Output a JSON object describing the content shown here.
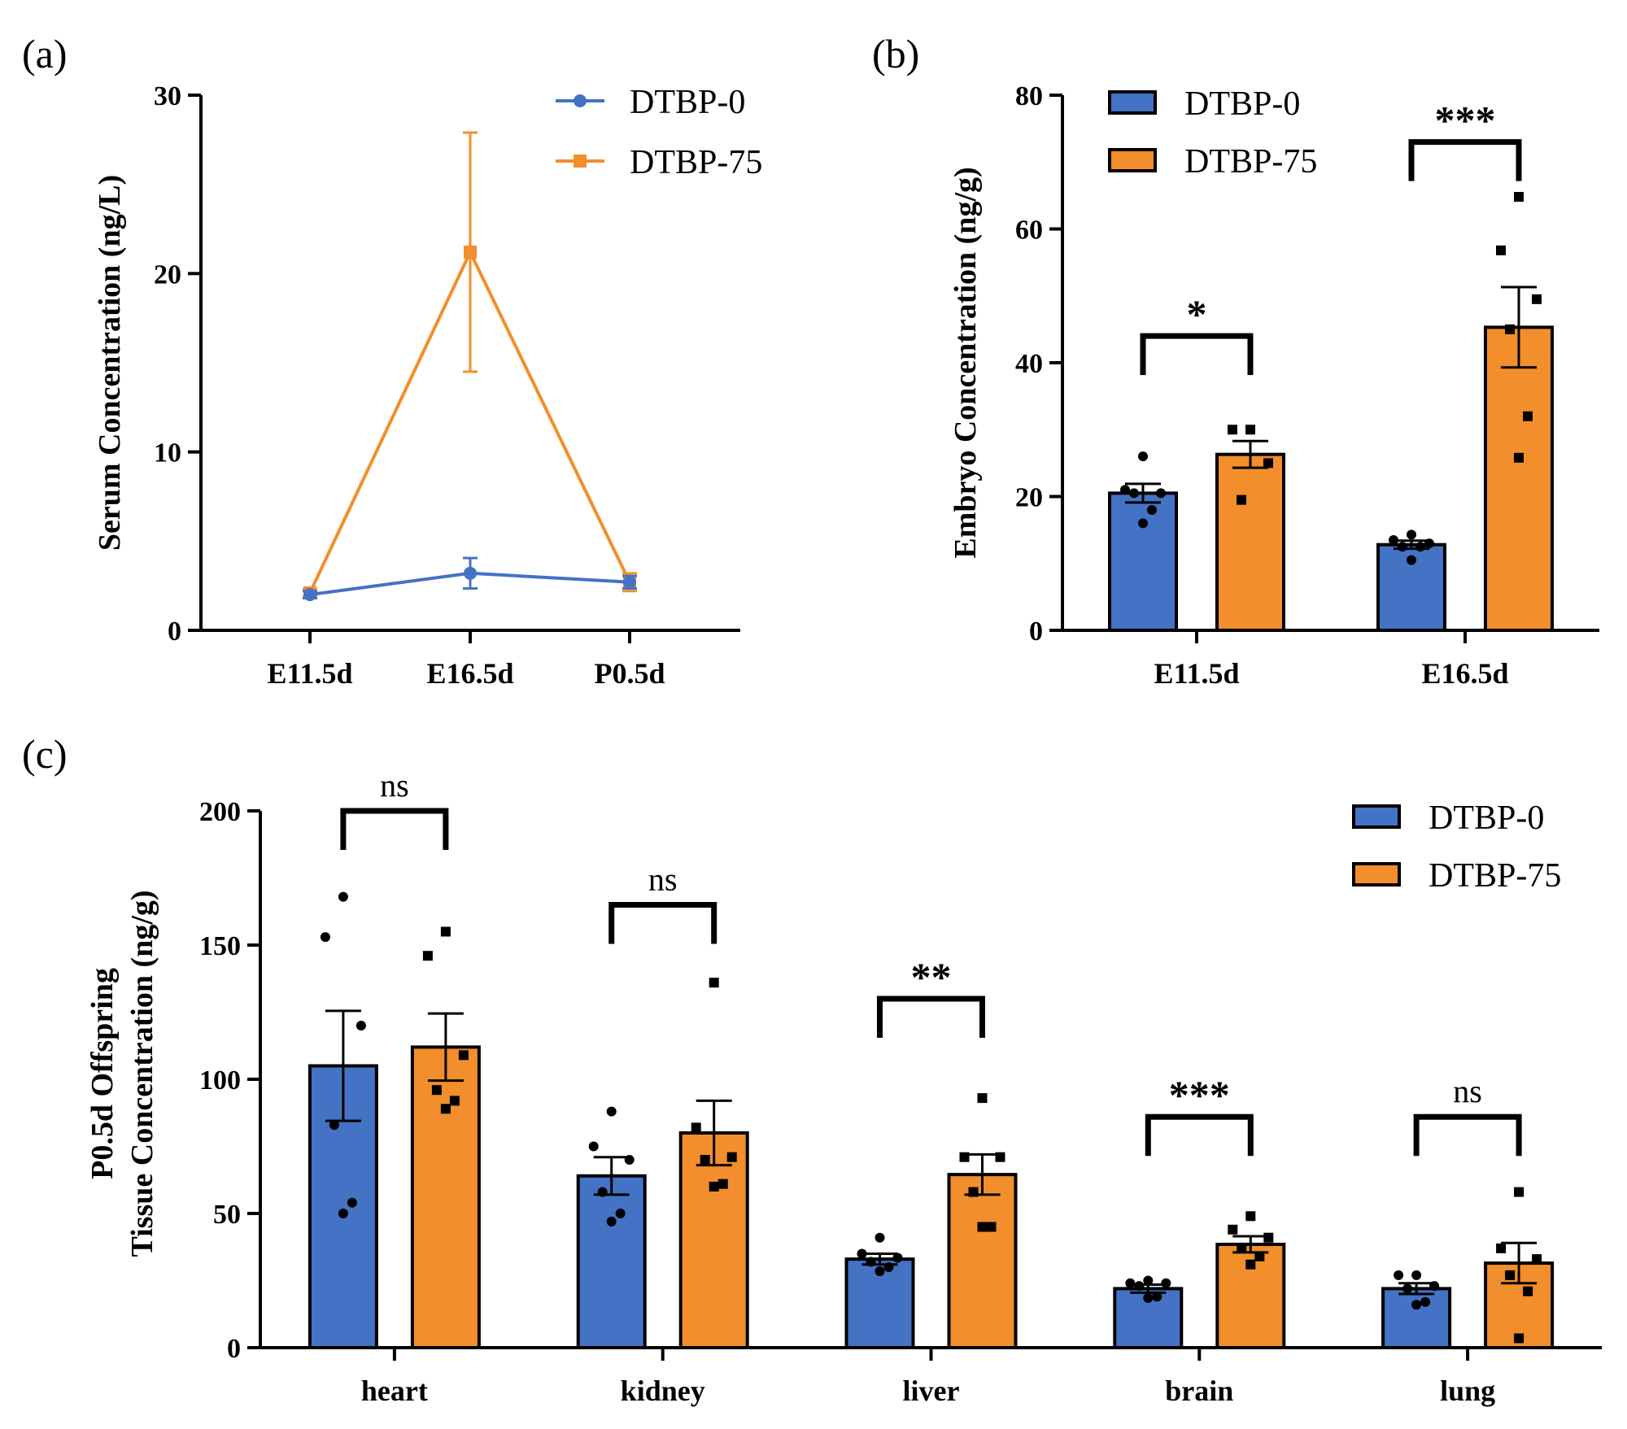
{
  "colors": {
    "blue": "#4472C4",
    "orange": "#F28E2B",
    "ink": "#000000"
  },
  "chart_data": [
    {
      "id": "a",
      "panel_label": "(a)",
      "type": "line",
      "ylabel": "Serum Concentration (ng/L)",
      "ylim": [
        0,
        30
      ],
      "yticks": [
        "0",
        "10",
        "20",
        "30"
      ],
      "categories": [
        "E11.5d",
        "E16.5d",
        "P0.5d"
      ],
      "series": [
        {
          "name": "DTBP-0",
          "color": "#4472C4",
          "marker": "circle",
          "values": [
            2.0,
            3.2,
            2.7
          ],
          "err": [
            0.2,
            0.85,
            0.35
          ]
        },
        {
          "name": "DTBP-75",
          "color": "#F28E2B",
          "marker": "square",
          "values": [
            2.1,
            21.2,
            2.7
          ],
          "err": [
            0.2,
            6.7,
            0.5
          ]
        }
      ],
      "legend": "top-right"
    },
    {
      "id": "b",
      "panel_label": "(b)",
      "type": "bar",
      "ylabel": "Embryo Concentration (ng/g)",
      "ylim": [
        0,
        80
      ],
      "yticks": [
        "0",
        "20",
        "40",
        "60",
        "80"
      ],
      "categories": [
        "E11.5d",
        "E16.5d"
      ],
      "series": [
        {
          "name": "DTBP-0",
          "color": "#4472C4",
          "values": [
            20.5,
            12.8
          ],
          "err": [
            1.4,
            0.6
          ],
          "points": [
            [
              26,
              21,
              20.5,
              20.5,
              18,
              16
            ],
            [
              14.3,
              13.5,
              13,
              12.5,
              12.5,
              10.5
            ]
          ]
        },
        {
          "name": "DTBP-75",
          "color": "#F28E2B",
          "values": [
            26.3,
            45.3
          ],
          "err": [
            2.0,
            6.0
          ],
          "points": [
            [
              30,
              30,
              25,
              19.5
            ],
            [
              64.8,
              56.8,
              49.5,
              45,
              32,
              25.8
            ]
          ]
        }
      ],
      "significance": [
        {
          "label": "*",
          "height": 44
        },
        {
          "label": "***",
          "height": 73
        }
      ],
      "legend": "top-left"
    },
    {
      "id": "c",
      "panel_label": "(c)",
      "type": "bar",
      "ylabel": [
        "P0.5d Offspring",
        "Tissue Concentration (ng/g)"
      ],
      "ylim": [
        0,
        200
      ],
      "yticks": [
        "0",
        "50",
        "100",
        "150",
        "200"
      ],
      "categories": [
        "heart",
        "kidney",
        "liver",
        "brain",
        "lung"
      ],
      "series": [
        {
          "name": "DTBP-0",
          "color": "#4472C4",
          "values": [
            105,
            64,
            33,
            22,
            22
          ],
          "err": [
            20.5,
            7,
            2,
            1.5,
            2
          ],
          "points": [
            [
              168,
              153,
              120,
              83,
              54,
              50
            ],
            [
              88,
              75,
              70,
              58,
              50,
              47
            ],
            [
              41,
              35,
              33.5,
              32,
              30,
              28.5
            ],
            [
              25,
              24,
              24,
              23,
              19,
              18.5
            ],
            [
              27,
              27,
              23,
              22,
              17,
              16
            ]
          ]
        },
        {
          "name": "DTBP-75",
          "color": "#F28E2B",
          "values": [
            112,
            80,
            64.5,
            38.5,
            31.5
          ],
          "err": [
            12.5,
            12,
            7.5,
            3,
            7.5
          ],
          "points": [
            [
              155,
              146,
              109,
              96,
              92,
              89
            ],
            [
              136,
              82,
              71,
              70,
              61,
              60
            ],
            [
              93,
              71,
              71,
              58,
              45,
              45
            ],
            [
              49,
              44,
              41,
              37,
              34,
              31
            ],
            [
              58,
              37,
              33,
              27,
              21,
              3.5
            ]
          ]
        }
      ],
      "significance": [
        {
          "label": "ns",
          "height": 200
        },
        {
          "label": "ns",
          "height": 165
        },
        {
          "label": "**",
          "height": 130
        },
        {
          "label": "***",
          "height": 86
        },
        {
          "label": "ns",
          "height": 86
        }
      ],
      "legend": "top-right"
    }
  ]
}
